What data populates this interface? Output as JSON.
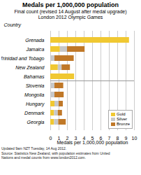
{
  "chart_data": {
    "type": "bar",
    "orientation": "horizontal",
    "stacked": true,
    "title": "Medals per 1,000,000 population",
    "subtitle": "Final count (revised 14 August after medal upgrade)\nLondon 2012 Olympic Games",
    "ylabel": "Country",
    "xlabel": "Medals per 1,000,000 population",
    "categories": [
      "Georgia",
      "Denmark",
      "Hungary",
      "Mongolia",
      "Slovenia",
      "Bahamas",
      "New Zealand",
      "Trinidad and Tobago",
      "Jamaica",
      "Grenada"
    ],
    "series": [
      {
        "name": "Gold",
        "color": "#F0C832",
        "values": [
          0.45,
          0.45,
          0.5,
          0.0,
          0.0,
          2.85,
          0.9,
          0.0,
          1.15,
          9.4
        ]
      },
      {
        "name": "Silver",
        "color": "#C8C8C8",
        "values": [
          0.5,
          0.45,
          0.5,
          0.5,
          0.5,
          0.0,
          0.45,
          0.5,
          0.85,
          0.0
        ]
      },
      {
        "name": "Bronze",
        "color": "#C07828",
        "values": [
          0.9,
          0.5,
          0.5,
          1.1,
          1.05,
          0.0,
          1.0,
          2.3,
          2.1,
          0.0
        ]
      }
    ],
    "xlim": [
      0,
      10
    ],
    "xticks": [
      0,
      1,
      2,
      3,
      4,
      5,
      6,
      7,
      8,
      9,
      10
    ],
    "grid": true,
    "legend": "lower right",
    "footnote": "Updated 9am NZT Tuesday, 14 Aug 2012.\nSource: Statistics New Zealand, with population estimates from United\nNations and medal counts from www.london2012.com."
  }
}
